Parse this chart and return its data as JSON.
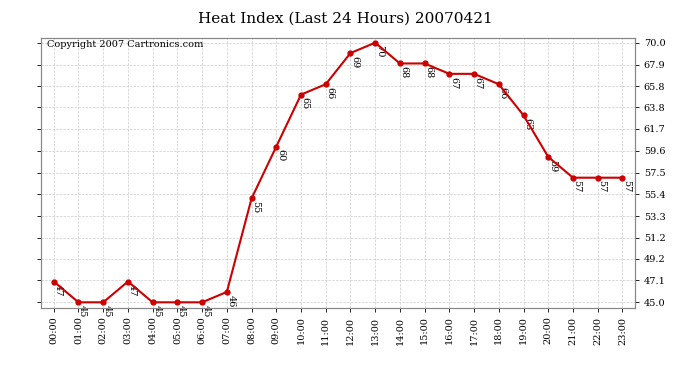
{
  "title": "Heat Index (Last 24 Hours) 20070421",
  "copyright": "Copyright 2007 Cartronics.com",
  "x_labels": [
    "00:00",
    "01:00",
    "02:00",
    "03:00",
    "04:00",
    "05:00",
    "06:00",
    "07:00",
    "08:00",
    "09:00",
    "10:00",
    "11:00",
    "12:00",
    "13:00",
    "14:00",
    "15:00",
    "16:00",
    "17:00",
    "18:00",
    "19:00",
    "20:00",
    "21:00",
    "22:00",
    "23:00"
  ],
  "y_values": [
    47,
    45,
    45,
    47,
    45,
    45,
    45,
    46,
    55,
    60,
    65,
    66,
    69,
    70,
    68,
    68,
    67,
    67,
    66,
    63,
    59,
    57,
    57,
    57
  ],
  "y_tick_vals": [
    45.0,
    47.1,
    49.2,
    51.2,
    53.3,
    55.4,
    57.5,
    59.6,
    61.7,
    63.8,
    65.8,
    67.9,
    70.0
  ],
  "y_labels_right": [
    "45.0",
    "47.1",
    "49.2",
    "51.2",
    "53.3",
    "55.4",
    "57.5",
    "59.6",
    "61.7",
    "63.8",
    "65.8",
    "67.9",
    "70.0"
  ],
  "ylim_min": 44.5,
  "ylim_max": 70.5,
  "line_color": "#cc0000",
  "marker_color": "#cc0000",
  "background_color": "#ffffff",
  "grid_color": "#cccccc",
  "title_fontsize": 11,
  "copyright_fontsize": 7,
  "annot_fontsize": 7,
  "tick_fontsize": 7
}
